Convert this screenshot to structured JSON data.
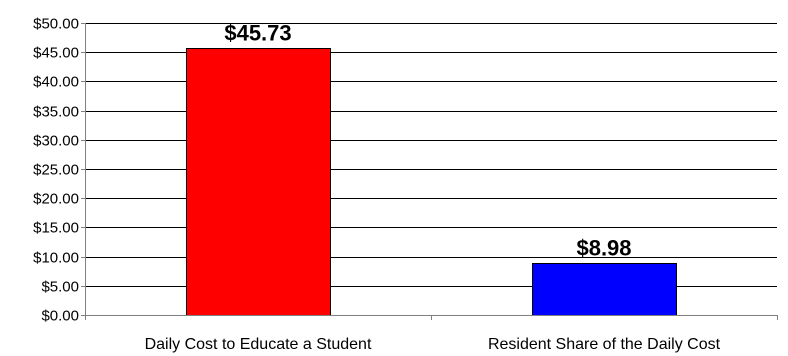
{
  "chart_data": {
    "type": "bar",
    "categories": [
      "Daily Cost to Educate a Student",
      "Resident Share of the Daily Cost"
    ],
    "values": [
      45.73,
      8.98
    ],
    "data_labels": [
      "$45.73",
      "$8.98"
    ],
    "bar_colors": [
      "#ff0000",
      "#0000ff"
    ],
    "y_ticks": [
      "$0.00",
      "$5.00",
      "$10.00",
      "$15.00",
      "$20.00",
      "$25.00",
      "$30.00",
      "$35.00",
      "$40.00",
      "$45.00",
      "$50.00"
    ],
    "ylim": [
      0,
      50
    ],
    "y_tick_step": 5,
    "grid": true,
    "legend": "none",
    "title": "",
    "xlabel": "",
    "ylabel": ""
  }
}
